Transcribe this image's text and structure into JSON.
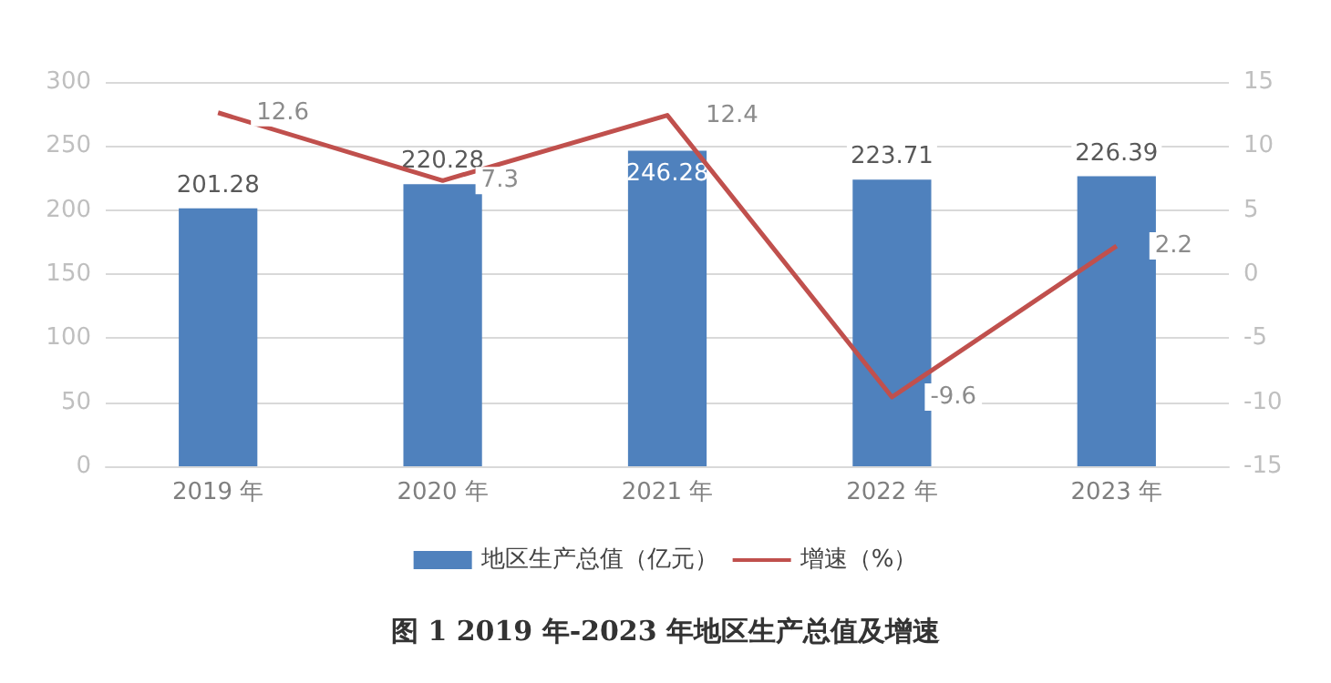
{
  "chart_data": {
    "type": "bar",
    "title": "图 1 2019 年-2023 年地区生产总值及增速",
    "categories": [
      "2019 年",
      "2020 年",
      "2021 年",
      "2022 年",
      "2023 年"
    ],
    "series": [
      {
        "name": "地区生产总值（亿元）",
        "color": "#4f81bd",
        "values": [
          201.28,
          220.28,
          246.28,
          223.71,
          226.39
        ]
      },
      {
        "name": "增速（%）",
        "type": "line",
        "axis": "y2",
        "color": "#c0504d",
        "values": [
          12.6,
          7.3,
          12.4,
          -9.6,
          2.2
        ]
      }
    ],
    "ylim": [
      0,
      300
    ],
    "yticks": [
      0,
      50,
      100,
      150,
      200,
      250,
      300
    ],
    "y2lim": [
      -15,
      15
    ],
    "y2ticks": [
      -15,
      -10,
      -5,
      0,
      5,
      10,
      15
    ],
    "grid": "y",
    "legend": "bottom",
    "data_labels": true,
    "marker": "none"
  }
}
